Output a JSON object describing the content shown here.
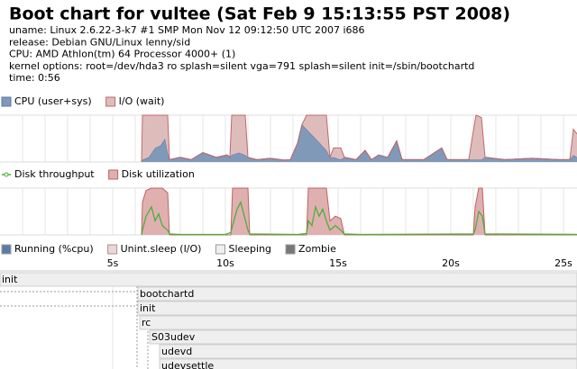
{
  "header": {
    "title": "Boot chart for vultee (Sat Feb 9 15:13:55 PST 2008)",
    "lines": [
      "uname: Linux 2.6.22-3-k7 #1 SMP Mon Nov 12 09:12:50 UTC 2007 i686",
      "release: Debian GNU/Linux lenny/sid",
      "CPU: AMD Athlon(tm) 64 Processor 4000+ (1)",
      "kernel options: root=/dev/hda3 ro splash=silent vga=791 splash=silent init=/sbin/bootchartd",
      "time: 0:56"
    ]
  },
  "chart_data": [
    {
      "type": "area",
      "xlim": [
        0,
        25.6
      ],
      "ylim": [
        0,
        100
      ],
      "xgrid": [
        1,
        2,
        3,
        4,
        5,
        6,
        7,
        8,
        9,
        10,
        11,
        12,
        13,
        14,
        15,
        16,
        17,
        18,
        19,
        20,
        21,
        22,
        23,
        24,
        25
      ],
      "x": [
        6.28,
        6.32,
        6.6,
        6.88,
        7.12,
        7.32,
        7.44,
        7.52,
        8,
        8.48,
        9,
        9.6,
        10.08,
        10.2,
        10.28,
        10.6,
        10.88,
        11,
        11.4,
        12,
        12.6,
        12.88,
        13.2,
        13.4,
        13.6,
        13.8,
        14.2,
        14.48,
        14.64,
        14.8,
        15.12,
        15.28,
        15.8,
        16.2,
        16.48,
        16.8,
        17.2,
        17.6,
        17.84,
        18.8,
        19.6,
        19.84,
        20.8,
        20.96,
        21.12,
        21.36,
        21.52,
        22.4,
        23.6,
        24.8,
        25.28,
        25.44,
        25.6
      ],
      "series": [
        {
          "name": "CPU (user+sys)",
          "color": "#8199b9",
          "edge": "#5a78a0",
          "values": [
            0,
            5,
            10,
            30,
            35,
            50,
            20,
            5,
            10,
            5,
            20,
            10,
            15,
            10,
            15,
            20,
            15,
            10,
            5,
            8,
            4,
            5,
            40,
            80,
            70,
            60,
            40,
            25,
            10,
            10,
            5,
            10,
            5,
            25,
            5,
            15,
            10,
            45,
            5,
            5,
            30,
            5,
            5,
            5,
            5,
            5,
            10,
            5,
            8,
            5,
            5,
            15,
            10
          ]
        },
        {
          "name": "I/O (wait)",
          "color": "#dfbcbc",
          "edge": "#c06868",
          "values": [
            0,
            95,
            90,
            70,
            65,
            50,
            80,
            0,
            0,
            0,
            0,
            0,
            0,
            0,
            85,
            80,
            85,
            0,
            0,
            0,
            0,
            0,
            0,
            0,
            30,
            40,
            60,
            75,
            0,
            20,
            25,
            0,
            0,
            0,
            0,
            0,
            0,
            0,
            0,
            0,
            0,
            0,
            0,
            50,
            95,
            90,
            0,
            0,
            0,
            0,
            0,
            55,
            50
          ]
        }
      ]
    },
    {
      "type": "combo",
      "xlim": [
        0,
        25.6
      ],
      "ylim": [
        0,
        100
      ],
      "xgrid": [
        1,
        2,
        3,
        4,
        5,
        6,
        7,
        8,
        9,
        10,
        11,
        12,
        13,
        14,
        15,
        16,
        17,
        18,
        19,
        20,
        21,
        22,
        23,
        24,
        25
      ],
      "x": [
        6.28,
        6.32,
        6.48,
        6.72,
        6.88,
        7.04,
        7.2,
        7.44,
        7.52,
        8,
        10,
        10.24,
        10.32,
        10.52,
        10.68,
        10.84,
        11,
        11.08,
        13.2,
        13.6,
        13.68,
        13.84,
        14,
        14.16,
        14.32,
        14.48,
        14.64,
        14.88,
        15.12,
        15.28,
        16,
        21,
        21.08,
        21.24,
        21.4,
        21.52,
        25.6
      ],
      "series": [
        {
          "name": "Disk throughput",
          "style": "line",
          "color": "#4caf3c",
          "values": [
            0,
            10,
            40,
            60,
            30,
            45,
            20,
            10,
            2,
            1,
            1,
            5,
            20,
            55,
            70,
            40,
            10,
            2,
            1,
            3,
            30,
            20,
            60,
            40,
            55,
            30,
            10,
            20,
            10,
            2,
            1,
            2,
            10,
            50,
            40,
            2,
            1
          ]
        },
        {
          "name": "Disk utilization",
          "style": "area",
          "color": "#e0b0b0",
          "edge": "#c06060",
          "values": [
            0,
            70,
            95,
            100,
            100,
            100,
            100,
            90,
            0,
            0,
            0,
            0,
            100,
            100,
            100,
            100,
            100,
            0,
            0,
            0,
            100,
            100,
            100,
            100,
            100,
            100,
            30,
            40,
            35,
            0,
            0,
            0,
            60,
            100,
            100,
            0,
            0
          ]
        }
      ]
    }
  ],
  "states": [
    {
      "name": "Running (%cpu)",
      "color": "#5b7ba6"
    },
    {
      "name": "Unint.sleep (I/O)",
      "color": "#f0d4d4"
    },
    {
      "name": "Sleeping",
      "color": "#f0f0f0"
    },
    {
      "name": "Zombie",
      "color": "#777777"
    }
  ],
  "timeline": {
    "xlim": [
      0,
      25.6
    ],
    "xticks": [
      {
        "value": 5,
        "label": "5s"
      },
      {
        "value": 10,
        "label": "10s"
      },
      {
        "value": 15,
        "label": "15s"
      },
      {
        "value": 20,
        "label": "20s"
      },
      {
        "value": 25,
        "label": "25s"
      }
    ]
  },
  "processes": [
    {
      "label": "init",
      "start": 0
    },
    {
      "label": "bootchartd",
      "start": 6.12
    },
    {
      "label": "init",
      "start": 6.12
    },
    {
      "label": "rc",
      "start": 6.2
    },
    {
      "label": "S03udev",
      "start": 6.64
    },
    {
      "label": "udevd",
      "start": 7.08
    },
    {
      "label": "udevsettle",
      "start": 7.08
    }
  ]
}
